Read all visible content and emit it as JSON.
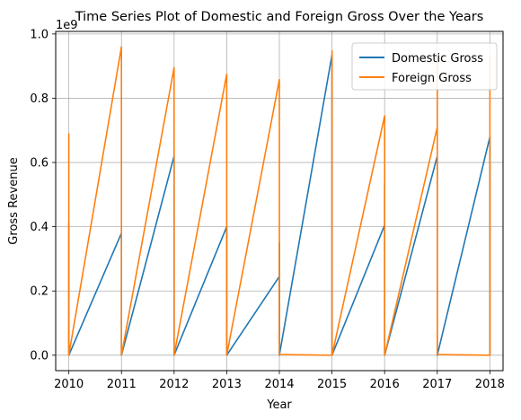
{
  "chart_data": {
    "type": "line",
    "title": "Time Series Plot of Domestic and Foreign Gross Over the Years",
    "xlabel": "Year",
    "ylabel": "Gross Revenue",
    "y_scale_label": "1e9",
    "xlim": [
      2009.75,
      2018.25
    ],
    "ylim": [
      -0.048,
      1.008
    ],
    "grid": true,
    "legend_position": "top-right",
    "x_ticks": [
      2010,
      2011,
      2012,
      2013,
      2014,
      2015,
      2016,
      2017,
      2018
    ],
    "x_tick_labels": [
      "2010",
      "2011",
      "2012",
      "2013",
      "2014",
      "2015",
      "2016",
      "2017",
      "2018"
    ],
    "y_ticks": [
      0.0,
      0.2,
      0.4,
      0.6,
      0.8,
      1.0
    ],
    "y_tick_labels": [
      "0.0",
      "0.2",
      "0.4",
      "0.6",
      "0.8",
      "1.0"
    ],
    "series": [
      {
        "name": "Domestic Gross",
        "color": "#1f77b4",
        "points": [
          [
            2010,
            0.0
          ],
          [
            2010,
            0.41
          ],
          [
            2010,
            0.0
          ],
          [
            2011,
            0.38
          ],
          [
            2011,
            0.0
          ],
          [
            2012,
            0.62
          ],
          [
            2012,
            0.0
          ],
          [
            2013,
            0.4
          ],
          [
            2013,
            0.0
          ],
          [
            2014,
            0.245
          ],
          [
            2014,
            0.35
          ],
          [
            2014,
            0.0
          ],
          [
            2015,
            0.935
          ],
          [
            2015,
            0.0
          ],
          [
            2016,
            0.405
          ],
          [
            2016,
            0.53
          ],
          [
            2016,
            0.0
          ],
          [
            2017,
            0.62
          ],
          [
            2017,
            0.0
          ],
          [
            2018,
            0.68
          ],
          [
            2018,
            0.0
          ]
        ]
      },
      {
        "name": "Foreign Gross",
        "color": "#ff7f0e",
        "points": [
          [
            2010,
            0.69
          ],
          [
            2010,
            0.0
          ],
          [
            2011,
            0.96
          ],
          [
            2011,
            0.0
          ],
          [
            2012,
            0.895
          ],
          [
            2012,
            0.0
          ],
          [
            2013,
            0.875
          ],
          [
            2013,
            0.0
          ],
          [
            2014,
            0.858
          ],
          [
            2014,
            0.002
          ],
          [
            2015,
            0.0
          ],
          [
            2015,
            0.948
          ],
          [
            2015,
            0.0
          ],
          [
            2016,
            0.745
          ],
          [
            2016,
            0.0
          ],
          [
            2017,
            0.71
          ],
          [
            2017,
            0.93
          ],
          [
            2017,
            0.002
          ],
          [
            2018,
            0.0
          ],
          [
            2018,
            0.93
          ]
        ]
      }
    ]
  }
}
